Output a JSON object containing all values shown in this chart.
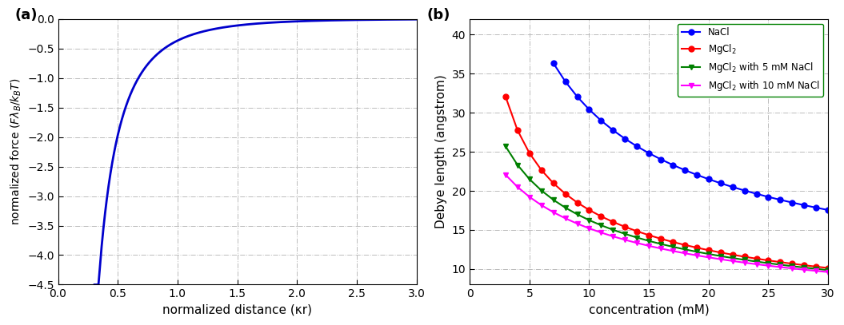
{
  "panel_a": {
    "label_a": "(a)",
    "xlabel": "normalized distance (κr)",
    "ylabel": "normalized force (Fλ_B/k_BT)",
    "xlim": [
      0,
      3
    ],
    "ylim": [
      -4.5,
      0
    ],
    "xticks": [
      0,
      0.5,
      1,
      1.5,
      2,
      2.5,
      3
    ],
    "yticks": [
      0,
      -0.5,
      -1,
      -1.5,
      -2,
      -2.5,
      -3,
      -3.5,
      -4,
      -4.5
    ],
    "color": "#0000CC",
    "linewidth": 2.0
  },
  "panel_b": {
    "label_b": "(b)",
    "xlabel": "concentration (mM)",
    "ylabel": "Debye length (angstrom)",
    "xlim": [
      0,
      30
    ],
    "ylim": [
      8,
      42
    ],
    "xticks": [
      0,
      5,
      10,
      15,
      20,
      25,
      30
    ],
    "yticks": [
      10,
      15,
      20,
      25,
      30,
      35,
      40
    ],
    "nacl_color": "#0000FF",
    "mgcl2_color": "#FF0000",
    "mgcl2_5mm_color": "#008000",
    "mgcl2_10mm_color": "#FF00FF",
    "nacl_label": "NaCl",
    "mgcl2_label": "MgCl$_2$",
    "mgcl2_5mm_label": "MgCl$_2$ with 5 mM NaCl",
    "mgcl2_10mm_label": "MgCl$_2$ with 10 mM NaCl",
    "marker_circle": "o",
    "marker_tri": "v",
    "marker_size": 5
  },
  "background_color": "#ffffff",
  "grid_color": "#bbbbbb",
  "grid_style": "-."
}
